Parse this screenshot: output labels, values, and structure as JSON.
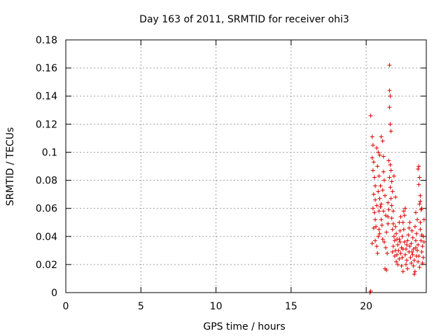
{
  "chart_data": {
    "type": "scatter",
    "title": "Day 163 of 2011, SRMTID for receiver ohi3",
    "xlabel": "GPS time / hours",
    "ylabel": "SRMTID / TECUs",
    "xlim": [
      0,
      24
    ],
    "ylim": [
      0,
      0.18
    ],
    "xticks": [
      0,
      5,
      10,
      15,
      20
    ],
    "xtick_labels": [
      "0",
      "5",
      "10",
      "15",
      "20"
    ],
    "yticks": [
      0,
      0.02,
      0.04,
      0.06,
      0.08,
      0.1,
      0.12,
      0.14,
      0.16,
      0.18
    ],
    "ytick_labels": [
      "0",
      "0.02",
      "0.04",
      "0.06",
      "0.08",
      "0.1",
      "0.12",
      "0.14",
      "0.16",
      "0.18"
    ],
    "grid": true,
    "marker": "+",
    "color": "#e00000",
    "series": [
      {
        "name": "ohi3",
        "points": [
          [
            20.25,
            0.0
          ],
          [
            20.3,
            0.001
          ],
          [
            20.3,
            0.126
          ],
          [
            20.4,
            0.111
          ],
          [
            20.45,
            0.105
          ],
          [
            20.4,
            0.096
          ],
          [
            20.5,
            0.093
          ],
          [
            20.45,
            0.087
          ],
          [
            20.55,
            0.082
          ],
          [
            20.6,
            0.076
          ],
          [
            20.5,
            0.07
          ],
          [
            20.6,
            0.066
          ],
          [
            20.45,
            0.06
          ],
          [
            20.55,
            0.057
          ],
          [
            20.6,
            0.052
          ],
          [
            20.5,
            0.046
          ],
          [
            20.4,
            0.035
          ],
          [
            20.6,
            0.037
          ],
          [
            20.7,
            0.033
          ],
          [
            20.75,
            0.028
          ],
          [
            20.8,
            0.04
          ],
          [
            20.85,
            0.045
          ],
          [
            20.7,
            0.103
          ],
          [
            20.8,
            0.1
          ],
          [
            20.9,
            0.098
          ],
          [
            20.75,
            0.09
          ],
          [
            20.85,
            0.083
          ],
          [
            20.95,
            0.076
          ],
          [
            20.8,
            0.072
          ],
          [
            20.9,
            0.067
          ],
          [
            21.0,
            0.063
          ],
          [
            20.7,
            0.062
          ],
          [
            20.85,
            0.058
          ],
          [
            21.0,
            0.052
          ],
          [
            21.05,
            0.048
          ],
          [
            20.9,
            0.042
          ],
          [
            21.1,
            0.038
          ],
          [
            21.0,
            0.111
          ],
          [
            21.1,
            0.108
          ],
          [
            21.15,
            0.086
          ],
          [
            21.2,
            0.08
          ],
          [
            21.1,
            0.073
          ],
          [
            21.25,
            0.069
          ],
          [
            21.15,
            0.058
          ],
          [
            21.3,
            0.055
          ],
          [
            21.2,
            0.036
          ],
          [
            21.3,
            0.032
          ],
          [
            21.25,
            0.017
          ],
          [
            21.35,
            0.016
          ],
          [
            21.4,
            0.028
          ],
          [
            21.45,
            0.049
          ],
          [
            21.45,
            0.054
          ],
          [
            21.5,
            0.059
          ],
          [
            21.45,
            0.064
          ],
          [
            21.55,
            0.162
          ],
          [
            21.55,
            0.144
          ],
          [
            21.6,
            0.14
          ],
          [
            21.55,
            0.132
          ],
          [
            21.6,
            0.12
          ],
          [
            21.65,
            0.115
          ],
          [
            21.5,
            0.094
          ],
          [
            21.6,
            0.091
          ],
          [
            21.65,
            0.087
          ],
          [
            21.55,
            0.082
          ],
          [
            21.7,
            0.079
          ],
          [
            21.6,
            0.075
          ],
          [
            21.75,
            0.072
          ],
          [
            21.65,
            0.067
          ],
          [
            21.7,
            0.062
          ],
          [
            21.8,
            0.058
          ],
          [
            21.7,
            0.053
          ],
          [
            21.8,
            0.049
          ],
          [
            21.75,
            0.045
          ],
          [
            21.85,
            0.04
          ],
          [
            21.9,
            0.037
          ],
          [
            21.8,
            0.033
          ],
          [
            21.95,
            0.03
          ],
          [
            21.9,
            0.026
          ],
          [
            22.0,
            0.022
          ],
          [
            21.85,
            0.083
          ],
          [
            21.95,
            0.047
          ],
          [
            22.0,
            0.042
          ],
          [
            22.05,
            0.038
          ],
          [
            22.1,
            0.034
          ],
          [
            22.15,
            0.03
          ],
          [
            22.05,
            0.027
          ],
          [
            22.2,
            0.024
          ],
          [
            22.1,
            0.02
          ],
          [
            22.25,
            0.044
          ],
          [
            22.2,
            0.05
          ],
          [
            22.3,
            0.054
          ],
          [
            22.25,
            0.036
          ],
          [
            22.35,
            0.032
          ],
          [
            22.3,
            0.028
          ],
          [
            22.4,
            0.025
          ],
          [
            22.35,
            0.019
          ],
          [
            22.45,
            0.015
          ],
          [
            22.4,
            0.04
          ],
          [
            22.5,
            0.045
          ],
          [
            22.45,
            0.05
          ],
          [
            22.55,
            0.055
          ],
          [
            22.5,
            0.058
          ],
          [
            22.6,
            0.06
          ],
          [
            22.55,
            0.036
          ],
          [
            22.65,
            0.031
          ],
          [
            22.6,
            0.027
          ],
          [
            22.7,
            0.023
          ],
          [
            22.65,
            0.02
          ],
          [
            22.75,
            0.017
          ],
          [
            22.8,
            0.041
          ],
          [
            22.85,
            0.046
          ],
          [
            22.75,
            0.037
          ],
          [
            22.9,
            0.033
          ],
          [
            22.85,
            0.029
          ],
          [
            22.95,
            0.025
          ],
          [
            23.0,
            0.021
          ],
          [
            22.9,
            0.05
          ],
          [
            23.05,
            0.044
          ],
          [
            23.1,
            0.039
          ],
          [
            23.0,
            0.035
          ],
          [
            23.15,
            0.031
          ],
          [
            23.1,
            0.027
          ],
          [
            23.2,
            0.023
          ],
          [
            23.15,
            0.019
          ],
          [
            23.25,
            0.015
          ],
          [
            23.2,
            0.013
          ],
          [
            23.3,
            0.037
          ],
          [
            23.35,
            0.042
          ],
          [
            23.25,
            0.047
          ],
          [
            23.4,
            0.052
          ],
          [
            23.3,
            0.057
          ],
          [
            23.45,
            0.034
          ],
          [
            23.4,
            0.03
          ],
          [
            23.5,
            0.026
          ],
          [
            23.45,
            0.022
          ],
          [
            23.55,
            0.018
          ],
          [
            23.5,
            0.09
          ],
          [
            23.45,
            0.088
          ],
          [
            23.55,
            0.082
          ],
          [
            23.5,
            0.077
          ],
          [
            23.6,
            0.069
          ],
          [
            23.55,
            0.063
          ],
          [
            23.65,
            0.059
          ],
          [
            23.6,
            0.045
          ],
          [
            23.7,
            0.041
          ],
          [
            23.65,
            0.037
          ],
          [
            23.75,
            0.033
          ],
          [
            23.7,
            0.029
          ],
          [
            23.8,
            0.025
          ],
          [
            23.75,
            0.021
          ],
          [
            23.85,
            0.036
          ],
          [
            23.8,
            0.04
          ],
          [
            23.7,
            0.06
          ],
          [
            23.85,
            0.052
          ],
          [
            23.6,
            0.065
          ],
          [
            23.3,
            0.032
          ],
          [
            22.2,
            0.038
          ],
          [
            21.95,
            0.068
          ],
          [
            21.35,
            0.043
          ],
          [
            21.15,
            0.097
          ],
          [
            20.95,
            0.061
          ],
          [
            20.65,
            0.047
          ],
          [
            22.7,
            0.034
          ],
          [
            23.05,
            0.029
          ],
          [
            23.35,
            0.026
          ],
          [
            22.45,
            0.031
          ],
          [
            21.75,
            0.029
          ],
          [
            23.6,
            0.05
          ]
        ]
      }
    ]
  }
}
